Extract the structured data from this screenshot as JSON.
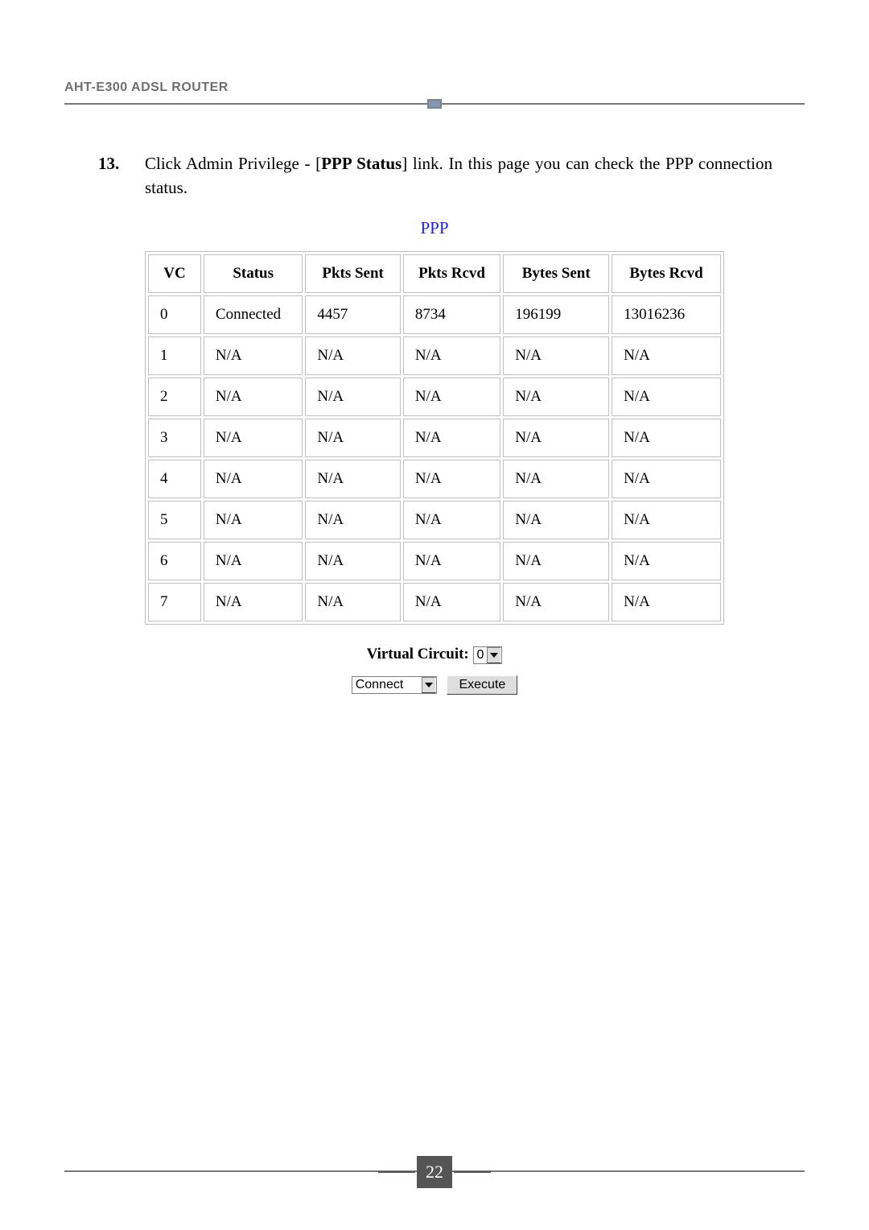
{
  "header": {
    "product": "AHT-E300 ADSL ROUTER",
    "rule_color": "#787878",
    "tick_color": "#8294b1"
  },
  "instruction": {
    "number": "13.",
    "pre": "Click Admin Privilege - [",
    "bold": "PPP Status",
    "post": "] link. In this page you can check the PPP connection status."
  },
  "ppp": {
    "heading": "PPP",
    "heading_color": "#1c1cff",
    "table": {
      "border_color": "#bfbfbf",
      "columns": [
        "VC",
        "Status",
        "Pkts Sent",
        "Pkts Rcvd",
        "Bytes Sent",
        "Bytes Rcvd"
      ],
      "rows": [
        [
          "0",
          "Connected",
          "4457",
          "8734",
          "196199",
          "13016236"
        ],
        [
          "1",
          "N/A",
          "N/A",
          "N/A",
          "N/A",
          "N/A"
        ],
        [
          "2",
          "N/A",
          "N/A",
          "N/A",
          "N/A",
          "N/A"
        ],
        [
          "3",
          "N/A",
          "N/A",
          "N/A",
          "N/A",
          "N/A"
        ],
        [
          "4",
          "N/A",
          "N/A",
          "N/A",
          "N/A",
          "N/A"
        ],
        [
          "5",
          "N/A",
          "N/A",
          "N/A",
          "N/A",
          "N/A"
        ],
        [
          "6",
          "N/A",
          "N/A",
          "N/A",
          "N/A",
          "N/A"
        ],
        [
          "7",
          "N/A",
          "N/A",
          "N/A",
          "N/A",
          "N/A"
        ]
      ]
    }
  },
  "controls": {
    "vc_label": "Virtual Circuit:",
    "vc_value": "0",
    "action_value": "Connect",
    "execute_label": "Execute"
  },
  "footer": {
    "page_number": "22",
    "badge_bg": "#555555"
  }
}
